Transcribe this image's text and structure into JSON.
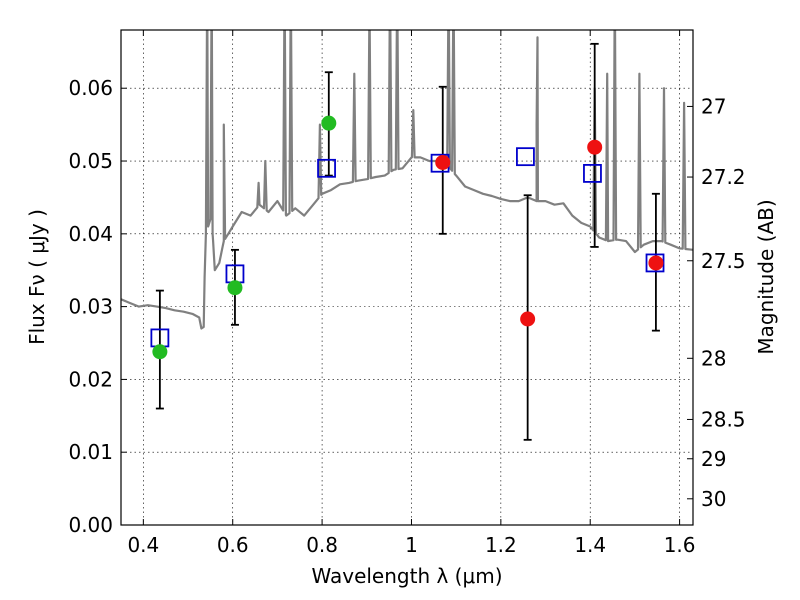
{
  "chart_data": {
    "type": "scatter",
    "xlabel": "Wavelength  λ (μm)",
    "ylabel": "Flux  Fν  ( μJy )",
    "y2label": "Magnitude (AB)",
    "xlim": [
      0.35,
      1.63
    ],
    "ylim": [
      0.0,
      0.068
    ],
    "grid": true,
    "x_ticks": [
      0.4,
      0.6,
      0.8,
      1.0,
      1.2,
      1.4,
      1.6
    ],
    "x_tick_labels": [
      "0.4",
      "0.6",
      "0.8",
      "1",
      "1.2",
      "1.4",
      "1.6"
    ],
    "y_ticks": [
      0.0,
      0.01,
      0.02,
      0.03,
      0.04,
      0.05,
      0.06
    ],
    "y_tick_labels": [
      "0.00",
      "0.01",
      "0.02",
      "0.03",
      "0.04",
      "0.05",
      "0.06"
    ],
    "y2_ticks": [
      {
        "label": "27",
        "flux": 0.0575
      },
      {
        "label": "27.2",
        "flux": 0.0478
      },
      {
        "label": "27.5",
        "flux": 0.0363
      },
      {
        "label": "28",
        "flux": 0.0229
      },
      {
        "label": "28.5",
        "flux": 0.0145
      },
      {
        "label": "29",
        "flux": 0.0091
      },
      {
        "label": "30",
        "flux": 0.0036
      }
    ],
    "series": [
      {
        "name": "model-spectrum",
        "kind": "line",
        "color": "#808080",
        "x": [
          0.35,
          0.37,
          0.39,
          0.41,
          0.43,
          0.45,
          0.47,
          0.49,
          0.51,
          0.525,
          0.53,
          0.535,
          0.537,
          0.54,
          0.545,
          0.55,
          0.555,
          0.56,
          0.57,
          0.58,
          0.59,
          0.6,
          0.62,
          0.64,
          0.66,
          0.68,
          0.7,
          0.72,
          0.74,
          0.76,
          0.78,
          0.8,
          0.82,
          0.84,
          0.86,
          0.88,
          0.9,
          0.92,
          0.94,
          0.96,
          0.98,
          1.0,
          1.02,
          1.04,
          1.06,
          1.08,
          1.1,
          1.12,
          1.14,
          1.16,
          1.18,
          1.2,
          1.22,
          1.24,
          1.26,
          1.28,
          1.3,
          1.32,
          1.34,
          1.36,
          1.38,
          1.4,
          1.42,
          1.44,
          1.46,
          1.48,
          1.5,
          1.52,
          1.54,
          1.56,
          1.58,
          1.6,
          1.63
        ],
        "y": [
          0.031,
          0.0305,
          0.03,
          0.0302,
          0.03,
          0.0298,
          0.0295,
          0.0293,
          0.029,
          0.0285,
          0.027,
          0.0272,
          0.034,
          0.04,
          0.041,
          0.042,
          0.04,
          0.035,
          0.036,
          0.039,
          0.04,
          0.041,
          0.043,
          0.0425,
          0.044,
          0.043,
          0.0445,
          0.0425,
          0.0435,
          0.0425,
          0.044,
          0.0455,
          0.046,
          0.0468,
          0.047,
          0.0473,
          0.0475,
          0.0478,
          0.048,
          0.0488,
          0.049,
          0.0505,
          0.0505,
          0.05,
          0.05,
          0.0495,
          0.048,
          0.0465,
          0.046,
          0.0455,
          0.0452,
          0.0448,
          0.0445,
          0.0445,
          0.045,
          0.0445,
          0.0445,
          0.044,
          0.0442,
          0.0425,
          0.0415,
          0.041,
          0.0395,
          0.039,
          0.0392,
          0.039,
          0.0375,
          0.0385,
          0.039,
          0.039,
          0.0385,
          0.038,
          0.0378
        ]
      },
      {
        "name": "model-photometry",
        "kind": "open-square",
        "color": "#0000cc",
        "x": [
          0.437,
          0.605,
          0.81,
          1.064,
          1.255,
          1.405,
          1.545
        ],
        "y": [
          0.0257,
          0.0345,
          0.049,
          0.0497,
          0.0506,
          0.0483,
          0.036
        ]
      },
      {
        "name": "observed-green",
        "kind": "filled-circle",
        "color": "#22bb22",
        "x": [
          0.437,
          0.605,
          0.815
        ],
        "y": [
          0.0238,
          0.0326,
          0.0552
        ],
        "err_low": [
          0.016,
          0.0275,
          0.048
        ],
        "err_high": [
          0.0322,
          0.0378,
          0.0622
        ]
      },
      {
        "name": "observed-red",
        "kind": "filled-circle",
        "color": "#ee1111",
        "x": [
          1.07,
          1.26,
          1.41,
          1.547
        ],
        "y": [
          0.0498,
          0.0283,
          0.0519,
          0.036
        ],
        "err_low": [
          0.04,
          0.0117,
          0.0382,
          0.0267
        ],
        "err_high": [
          0.0602,
          0.0453,
          0.0661,
          0.0455
        ]
      }
    ],
    "emission_lines": [
      {
        "x": 0.543,
        "peak": 0.075
      },
      {
        "x": 0.553,
        "peak": 0.075
      },
      {
        "x": 0.58,
        "peak": 0.055
      },
      {
        "x": 0.658,
        "peak": 0.047
      },
      {
        "x": 0.673,
        "peak": 0.05
      },
      {
        "x": 0.716,
        "peak": 0.075
      },
      {
        "x": 0.73,
        "peak": 0.075
      },
      {
        "x": 0.795,
        "peak": 0.055
      },
      {
        "x": 0.872,
        "peak": 0.062
      },
      {
        "x": 0.906,
        "peak": 0.072
      },
      {
        "x": 0.952,
        "peak": 0.075
      },
      {
        "x": 0.968,
        "peak": 0.075
      },
      {
        "x": 1.004,
        "peak": 0.057
      },
      {
        "x": 1.083,
        "peak": 0.075
      },
      {
        "x": 1.094,
        "peak": 0.075
      },
      {
        "x": 1.282,
        "peak": 0.067
      },
      {
        "x": 1.28,
        "peak": 0.055
      },
      {
        "x": 1.41,
        "peak": 0.06
      },
      {
        "x": 1.438,
        "peak": 0.062
      },
      {
        "x": 1.455,
        "peak": 0.075
      },
      {
        "x": 1.51,
        "peak": 0.062
      },
      {
        "x": 1.565,
        "peak": 0.06
      },
      {
        "x": 1.61,
        "peak": 0.058
      }
    ]
  }
}
